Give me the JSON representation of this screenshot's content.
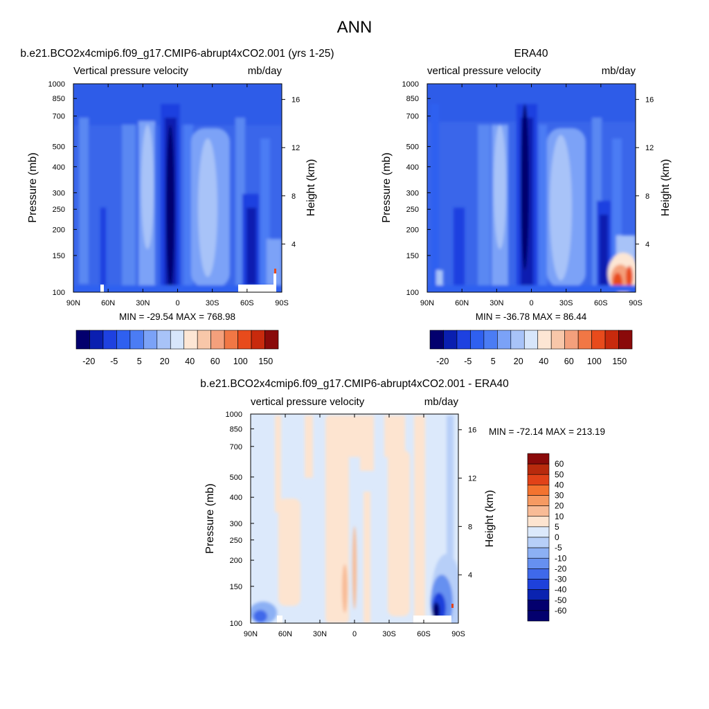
{
  "figure": {
    "title": "ANN"
  },
  "chart_data": [
    {
      "type": "heatmap",
      "title": "b.e21.BCO2x4cmip6.f09_g17.CMIP6-abrupt4xCO2.001 (yrs 1-25)",
      "left_string": "Vertical pressure velocity",
      "right_string": "mb/day",
      "x_ticks": [
        "90N",
        "60N",
        "30N",
        "0",
        "30S",
        "60S",
        "90S"
      ],
      "y_ticks": [
        "100",
        "150",
        "200",
        "250",
        "300",
        "400",
        "500",
        "700",
        "850",
        "1000"
      ],
      "y2_ticks": [
        "16",
        "12",
        "8",
        "4"
      ],
      "ylabel": "Pressure (mb)",
      "y2label": "Height (km)",
      "stats": "MIN = -29.54  MAX = 768.98",
      "colorbar_labels": [
        "-20",
        "-5",
        "5",
        "20",
        "40",
        "60",
        "100",
        "150"
      ]
    },
    {
      "type": "heatmap",
      "title": "ERA40",
      "left_string": "vertical pressure velocity",
      "right_string": "mb/day",
      "x_ticks": [
        "90N",
        "60N",
        "30N",
        "0",
        "30S",
        "60S",
        "90S"
      ],
      "y_ticks": [
        "100",
        "150",
        "200",
        "250",
        "300",
        "400",
        "500",
        "700",
        "850",
        "1000"
      ],
      "y2_ticks": [
        "16",
        "12",
        "8",
        "4"
      ],
      "ylabel": "Pressure (mb)",
      "y2label": "Height (km)",
      "stats": "MIN = -36.78  MAX =  86.44",
      "colorbar_labels": [
        "-20",
        "-5",
        "5",
        "20",
        "40",
        "60",
        "100",
        "150"
      ]
    },
    {
      "type": "heatmap",
      "title": "b.e21.BCO2x4cmip6.f09_g17.CMIP6-abrupt4xCO2.001 - ERA40",
      "left_string": "vertical pressure velocity",
      "right_string": "mb/day",
      "x_ticks": [
        "90N",
        "60N",
        "30N",
        "0",
        "30S",
        "60S",
        "90S"
      ],
      "y_ticks": [
        "100",
        "150",
        "200",
        "250",
        "300",
        "400",
        "500",
        "700",
        "850",
        "1000"
      ],
      "y2_ticks": [
        "16",
        "12",
        "8",
        "4"
      ],
      "ylabel": "Pressure (mb)",
      "y2label": "Height (km)",
      "stats": "MIN = -72.14  MAX = 213.19",
      "colorbar_labels": [
        "60",
        "50",
        "40",
        "30",
        "20",
        "10",
        "5",
        "0",
        "-5",
        "-10",
        "-20",
        "-30",
        "-40",
        "-50",
        "-60"
      ]
    }
  ],
  "colors": {
    "abs_scale": [
      "#03006e",
      "#0a1fb0",
      "#1e41e0",
      "#2f60f0",
      "#4b7cf4",
      "#7ba2f7",
      "#a8c3f8",
      "#d7e6fb",
      "#fde6d4",
      "#f8c7a9",
      "#f4a07c",
      "#f17745",
      "#e84b1c",
      "#c82a0d",
      "#8a0a0a"
    ],
    "diff_scale": [
      "#8a0a0a",
      "#b82a0d",
      "#e14218",
      "#f3732f",
      "#f69a62",
      "#f8bb96",
      "#fde4d0",
      "#dce9fb",
      "#b7cff8",
      "#8cb0f4",
      "#6690f0",
      "#3f69ea",
      "#1e41db",
      "#0a23b0",
      "#03006e"
    ]
  }
}
